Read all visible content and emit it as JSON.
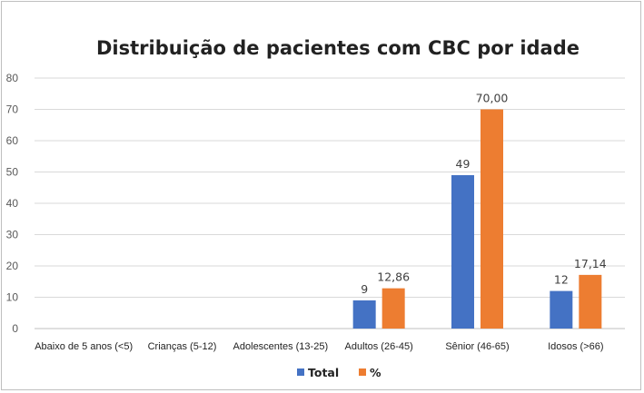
{
  "chart_data": {
    "type": "bar",
    "title": "Distribuição de pacientes com CBC por idade",
    "xlabel": "",
    "ylabel": "",
    "ylim": [
      0,
      80
    ],
    "yticks": [
      0,
      10,
      20,
      30,
      40,
      50,
      60,
      70,
      80
    ],
    "grid": true,
    "legend_position": "bottom",
    "categories": [
      "Abaixo de 5 anos (<5)",
      "Crianças (5-12)",
      "Adolescentes (13-25)",
      "Adultos (26-45)",
      "Sênior (46-65)",
      "Idosos (>66)"
    ],
    "series": [
      {
        "name": "Total",
        "color": "#4472c4",
        "values": [
          0,
          0,
          0,
          9,
          49,
          12
        ],
        "labels": [
          "",
          "",
          "",
          "9",
          "49",
          "12"
        ]
      },
      {
        "name": "%",
        "color": "#ed7d31",
        "values": [
          0,
          0,
          0,
          12.86,
          70.0,
          17.14
        ],
        "labels": [
          "",
          "",
          "",
          "12,86",
          "70,00",
          "17,14"
        ]
      }
    ]
  }
}
